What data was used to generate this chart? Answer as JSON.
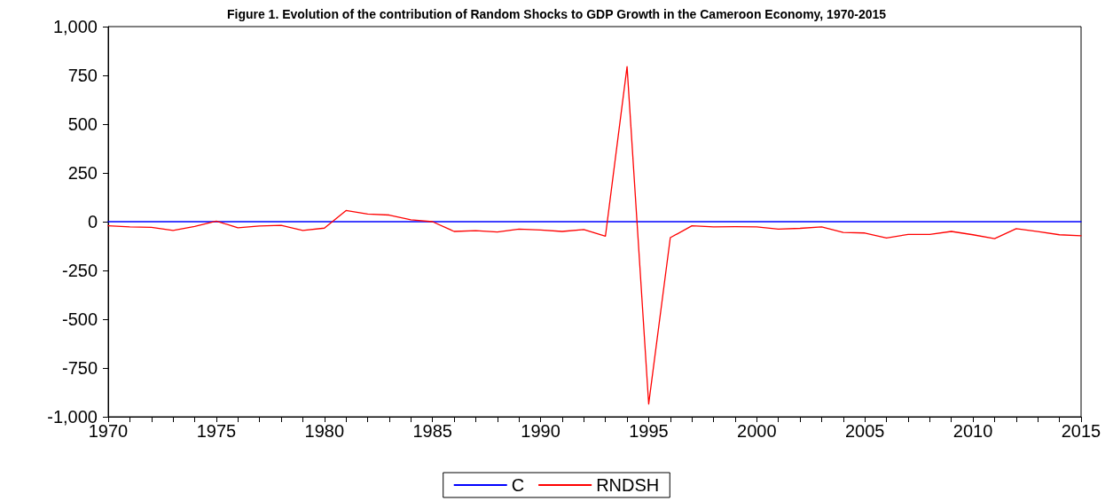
{
  "chart_data": {
    "type": "line",
    "title": "Figure 1. Evolution of the contribution of Random Shocks to GDP Growth in the Cameroon Economy, 1970-2015",
    "x": [
      1970,
      1971,
      1972,
      1973,
      1974,
      1975,
      1976,
      1977,
      1978,
      1979,
      1980,
      1981,
      1982,
      1983,
      1984,
      1985,
      1986,
      1987,
      1988,
      1989,
      1990,
      1991,
      1992,
      1993,
      1994,
      1995,
      1996,
      1997,
      1998,
      1999,
      2000,
      2001,
      2002,
      2003,
      2004,
      2005,
      2006,
      2007,
      2008,
      2009,
      2010,
      2011,
      2012,
      2013,
      2014,
      2015
    ],
    "series": [
      {
        "name": "C",
        "color": "#0000ff",
        "values": [
          0,
          0,
          0,
          0,
          0,
          0,
          0,
          0,
          0,
          0,
          0,
          0,
          0,
          0,
          0,
          0,
          0,
          0,
          0,
          0,
          0,
          0,
          0,
          0,
          0,
          0,
          0,
          0,
          0,
          0,
          0,
          0,
          0,
          0,
          0,
          0,
          0,
          0,
          0,
          0,
          0,
          0,
          0,
          0,
          0,
          0
        ]
      },
      {
        "name": "RNDSH",
        "color": "#ff0000",
        "values": [
          -21,
          -27,
          -29,
          -45,
          -24,
          3,
          -31,
          -22,
          -19,
          -45,
          -33,
          57,
          39,
          34,
          10,
          0,
          -50,
          -46,
          -53,
          -38,
          -43,
          -50,
          -40,
          -74,
          795,
          -935,
          -82,
          -21,
          -27,
          -26,
          -27,
          -38,
          -34,
          -27,
          -55,
          -58,
          -84,
          -65,
          -65,
          -50,
          -67,
          -87,
          -36,
          -51,
          -67,
          -72
        ]
      }
    ],
    "xlim": [
      1970,
      2015
    ],
    "xticks": [
      1970,
      {
        "value": 1971,
        "label": null
      },
      {
        "value": 1972,
        "label": null
      },
      {
        "value": 1973,
        "label": null
      },
      {
        "value": 1974,
        "label": null
      },
      1975,
      {
        "value": 1976,
        "label": null
      },
      {
        "value": 1977,
        "label": null
      },
      {
        "value": 1978,
        "label": null
      },
      {
        "value": 1979,
        "label": null
      },
      1980,
      {
        "value": 1981,
        "label": null
      },
      {
        "value": 1982,
        "label": null
      },
      {
        "value": 1983,
        "label": null
      },
      {
        "value": 1984,
        "label": null
      },
      1985,
      {
        "value": 1986,
        "label": null
      },
      {
        "value": 1987,
        "label": null
      },
      {
        "value": 1988,
        "label": null
      },
      {
        "value": 1989,
        "label": null
      },
      1990,
      {
        "value": 1991,
        "label": null
      },
      {
        "value": 1992,
        "label": null
      },
      {
        "value": 1993,
        "label": null
      },
      {
        "value": 1994,
        "label": null
      },
      1995,
      {
        "value": 1996,
        "label": null
      },
      {
        "value": 1997,
        "label": null
      },
      {
        "value": 1998,
        "label": null
      },
      {
        "value": 1999,
        "label": null
      },
      2000,
      {
        "value": 2001,
        "label": null
      },
      {
        "value": 2002,
        "label": null
      },
      {
        "value": 2003,
        "label": null
      },
      {
        "value": 2004,
        "label": null
      },
      2005,
      {
        "value": 2006,
        "label": null
      },
      {
        "value": 2007,
        "label": null
      },
      {
        "value": 2008,
        "label": null
      },
      {
        "value": 2009,
        "label": null
      },
      2010,
      {
        "value": 2011,
        "label": null
      },
      {
        "value": 2012,
        "label": null
      },
      {
        "value": 2013,
        "label": null
      },
      {
        "value": 2014,
        "label": null
      },
      2015
    ],
    "ylim": [
      -1000,
      1000
    ],
    "yticks": [
      {
        "value": -1000,
        "label": "-1,000"
      },
      -750,
      -500,
      -250,
      0,
      250,
      500,
      750,
      {
        "value": 1000,
        "label": "1,000"
      }
    ],
    "grid": false,
    "legend": "bottom",
    "marker": "none",
    "line_style": "solid"
  }
}
